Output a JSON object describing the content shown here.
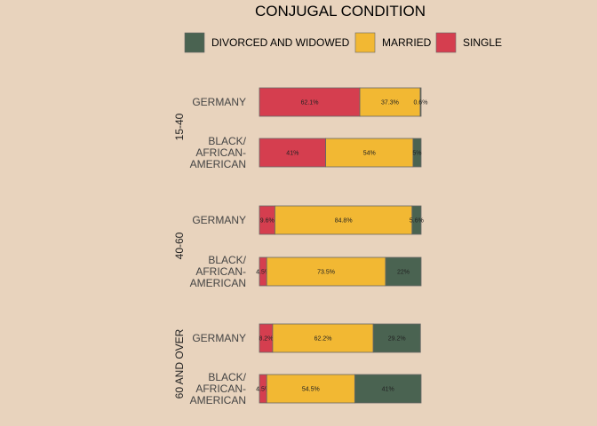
{
  "chart_data": {
    "type": "bar",
    "orientation": "horizontal",
    "stacked": true,
    "title": "CONJUGAL CONDITION",
    "legend": {
      "placement": "top",
      "entries": [
        "DIVORCED AND WIDOWED",
        "MARRIED",
        "SINGLE"
      ]
    },
    "colors": {
      "DIVORCED AND WIDOWED": "#4a6351",
      "MARRIED": "#f2b833",
      "SINGLE": "#d53e4f",
      "outline": "#666666",
      "background": "#e8d3bd"
    },
    "stack_order": [
      "SINGLE",
      "MARRIED",
      "DIVORCED AND WIDOWED"
    ],
    "xlim": [
      0,
      100
    ],
    "grid": false,
    "groups": [
      {
        "name": "15-40",
        "bars": [
          {
            "category": [
              "GERMANY"
            ],
            "values": {
              "SINGLE": 62.1,
              "MARRIED": 37.3,
              "DIVORCED AND WIDOWED": 0.6
            },
            "labels": {
              "SINGLE": "62.1%",
              "MARRIED": "37.3%",
              "DIVORCED AND WIDOWED": "0.6%"
            }
          },
          {
            "category": [
              "BLACK/",
              "AFRICAN-",
              "AMERICAN"
            ],
            "values": {
              "SINGLE": 41,
              "MARRIED": 54,
              "DIVORCED AND WIDOWED": 5
            },
            "labels": {
              "SINGLE": "41%",
              "MARRIED": "54%",
              "DIVORCED AND WIDOWED": "5%"
            }
          }
        ]
      },
      {
        "name": "40-60",
        "bars": [
          {
            "category": [
              "GERMANY"
            ],
            "values": {
              "SINGLE": 9.6,
              "MARRIED": 84.8,
              "DIVORCED AND WIDOWED": 5.6
            },
            "labels": {
              "SINGLE": "9.6%",
              "MARRIED": "84.8%",
              "DIVORCED AND WIDOWED": "5.6%"
            }
          },
          {
            "category": [
              "BLACK/",
              "AFRICAN-",
              "AMERICAN"
            ],
            "values": {
              "SINGLE": 4.5,
              "MARRIED": 73.5,
              "DIVORCED AND WIDOWED": 22
            },
            "labels": {
              "SINGLE": "4.5%",
              "MARRIED": "73.5%",
              "DIVORCED AND WIDOWED": "22%"
            }
          }
        ]
      },
      {
        "name": "60 AND OVER",
        "bars": [
          {
            "category": [
              "GERMANY"
            ],
            "values": {
              "SINGLE": 8.2,
              "MARRIED": 62.2,
              "DIVORCED AND WIDOWED": 29.2
            },
            "labels": {
              "SINGLE": "8.2%",
              "MARRIED": "62.2%",
              "DIVORCED AND WIDOWED": "29.2%"
            }
          },
          {
            "category": [
              "BLACK/",
              "AFRICAN-",
              "AMERICAN"
            ],
            "values": {
              "SINGLE": 4.5,
              "MARRIED": 54.5,
              "DIVORCED AND WIDOWED": 41
            },
            "labels": {
              "SINGLE": "4.5%",
              "MARRIED": "54.5%",
              "DIVORCED AND WIDOWED": "41%"
            }
          }
        ]
      }
    ]
  }
}
